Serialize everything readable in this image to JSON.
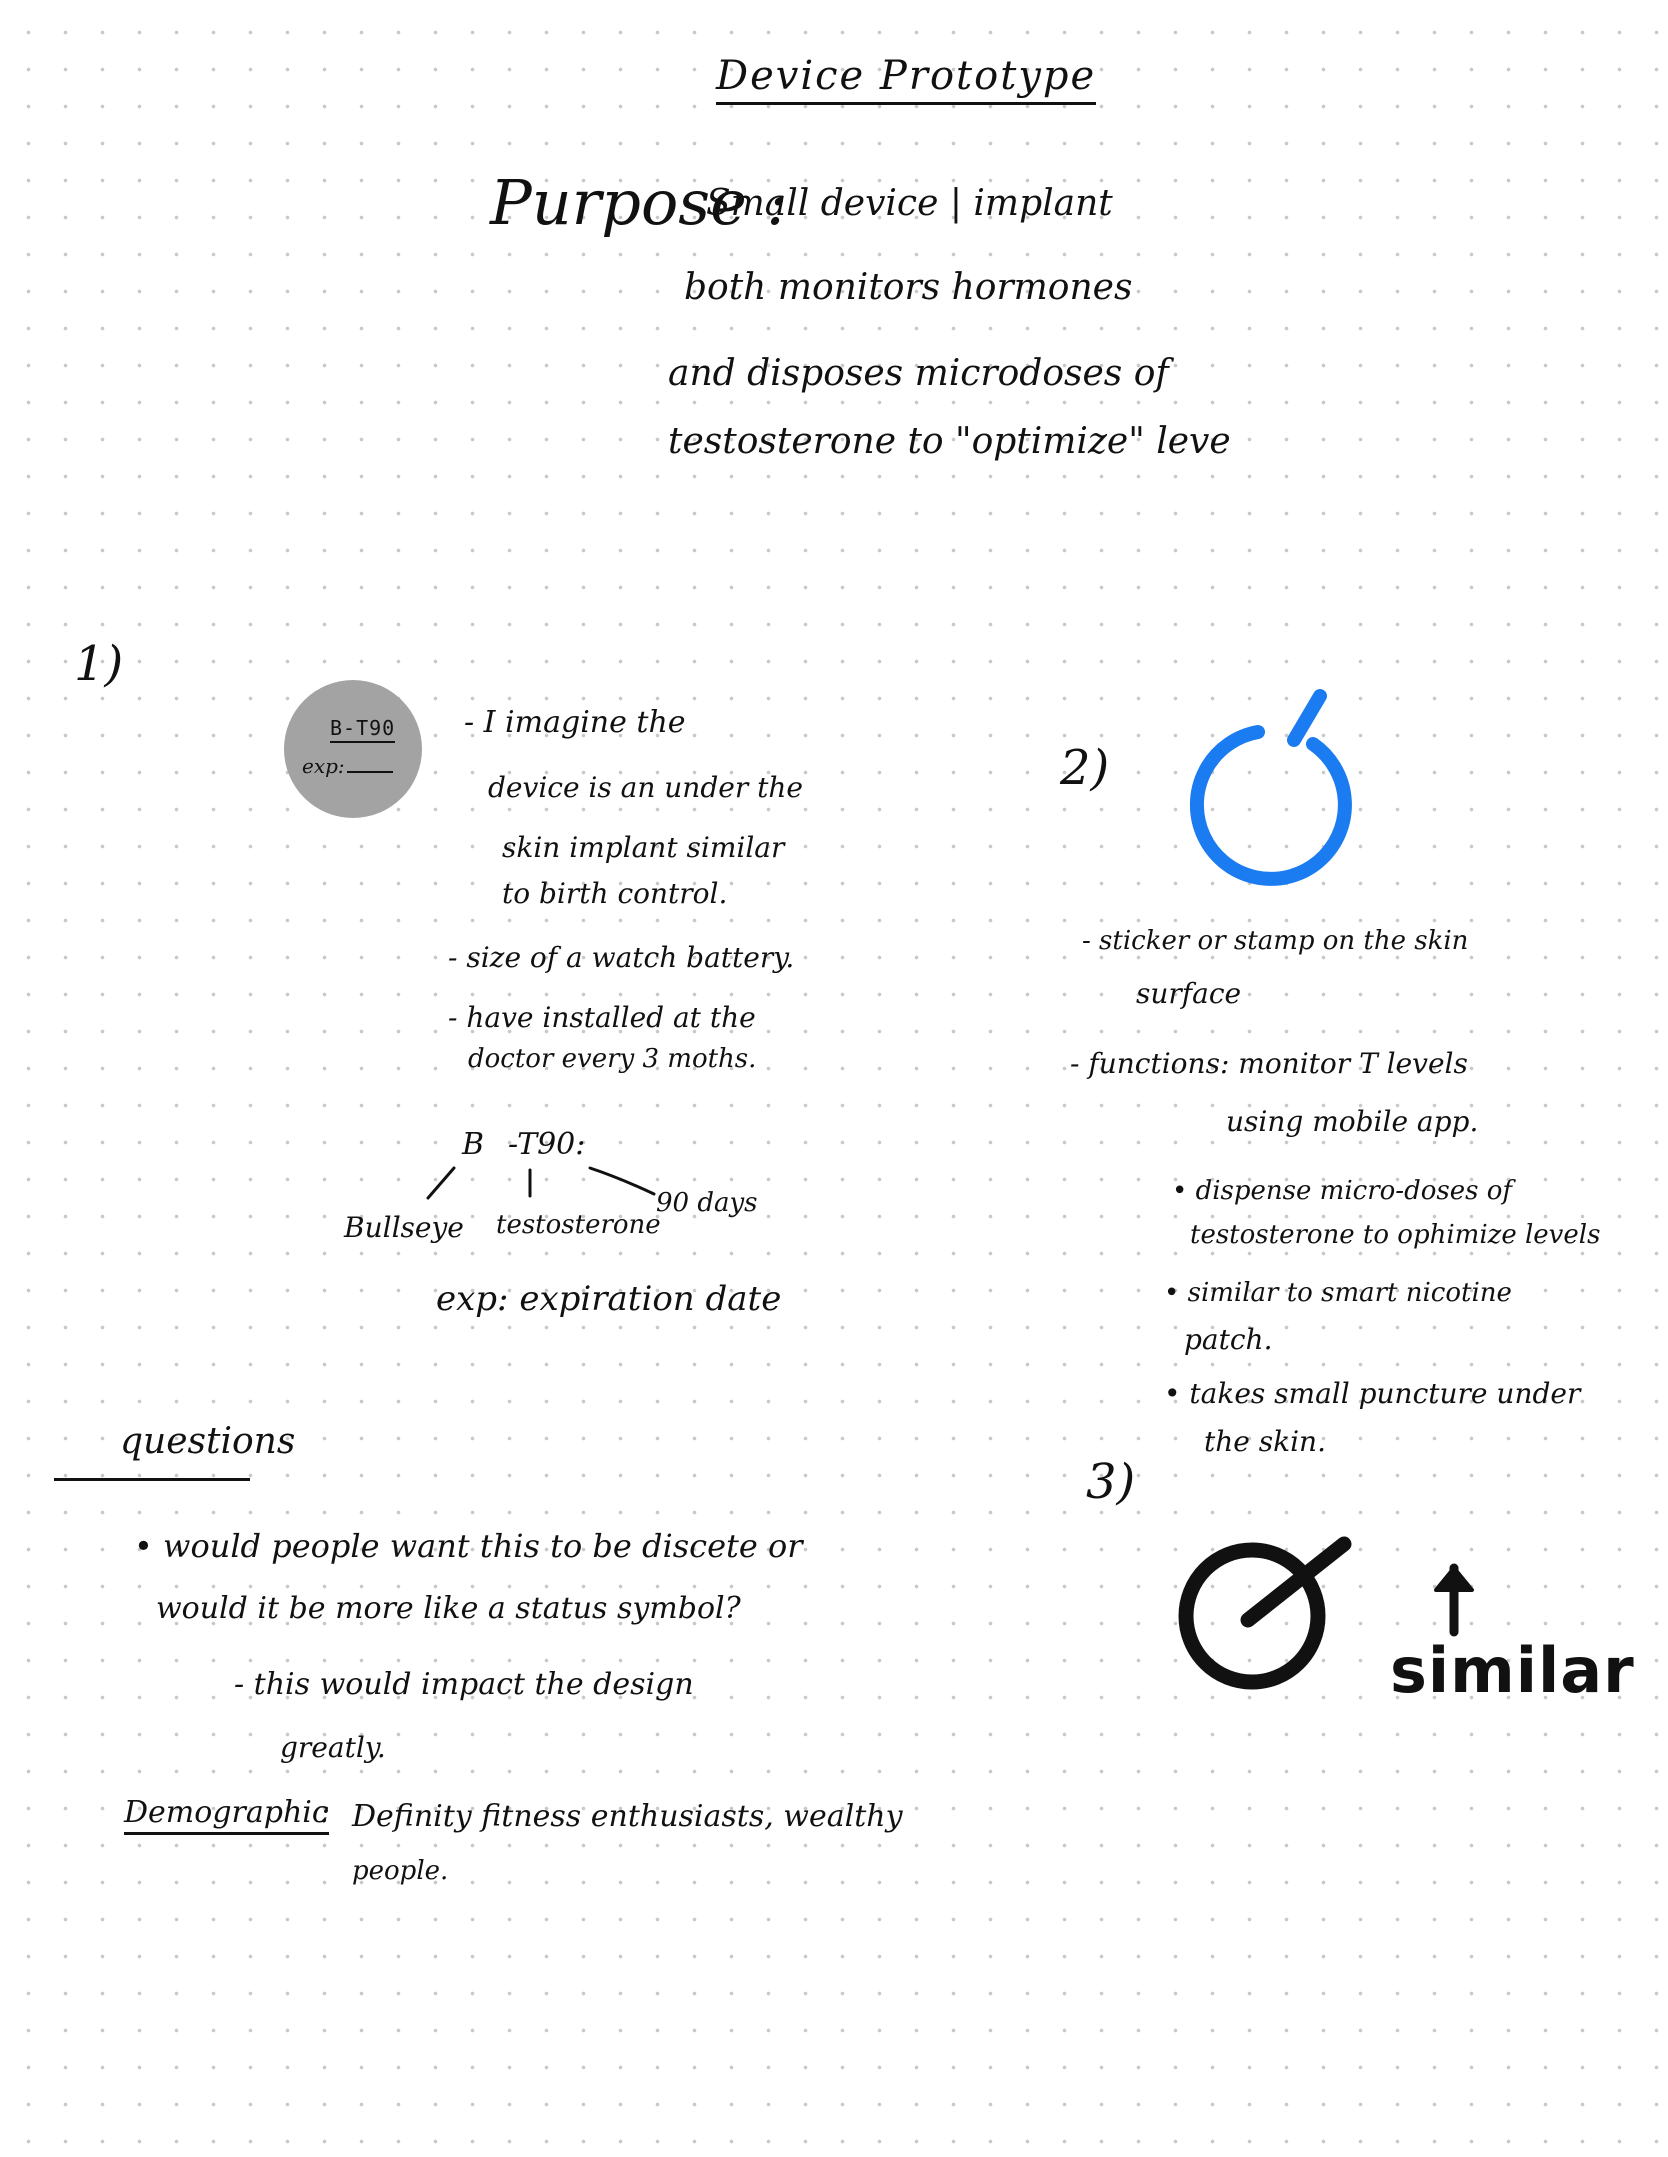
{
  "title": "Device Prototype",
  "purpose": {
    "label": "Purpose :",
    "lines": [
      "Small device | implant",
      "both monitors hormones",
      "and disposes microdoses of",
      "testosterone to \"optimize\" leve"
    ]
  },
  "idea1": {
    "number": "1)",
    "disc": {
      "code": "B-T90",
      "exp_label": "exp:"
    },
    "description_lines": [
      "- I imagine the",
      "device is an under the",
      "skin implant similar",
      "to birth control."
    ],
    "bullets": [
      "- size of a watch battery.",
      "- have installed at the",
      "doctor every 3 moths."
    ],
    "breakdown": {
      "code_parts": [
        "B",
        "-T90:"
      ],
      "meanings": [
        "Bullseye",
        "testosterone",
        "90 days"
      ],
      "exp_note": "exp: expiration date"
    }
  },
  "idea2": {
    "number": "2)",
    "icon": "power-ring-icon",
    "icon_color": "#1a7cf0",
    "lines": [
      "- sticker or stamp on the skin",
      "surface",
      "- functions: monitor T levels",
      "using mobile app.",
      "• dispense micro-doses of",
      "testosterone to ophimize levels",
      "• similar to smart nicotine",
      "patch.",
      "• takes small puncture under",
      "the skin."
    ]
  },
  "idea3": {
    "number": "3)",
    "icon": "power-ring-icon",
    "icon_color": "#111111",
    "arrow": "up-arrow-icon",
    "note": "similar"
  },
  "questions": {
    "heading": "questions",
    "lines": [
      "• would people want this to be discete or",
      "would it be more like a status symbol?",
      "- this would impact the design",
      "greatly."
    ]
  },
  "demographic": {
    "label": "Demographic",
    "separator": ":",
    "text_lines": [
      "Definity fitness enthusiasts, wealthy",
      "people."
    ]
  }
}
